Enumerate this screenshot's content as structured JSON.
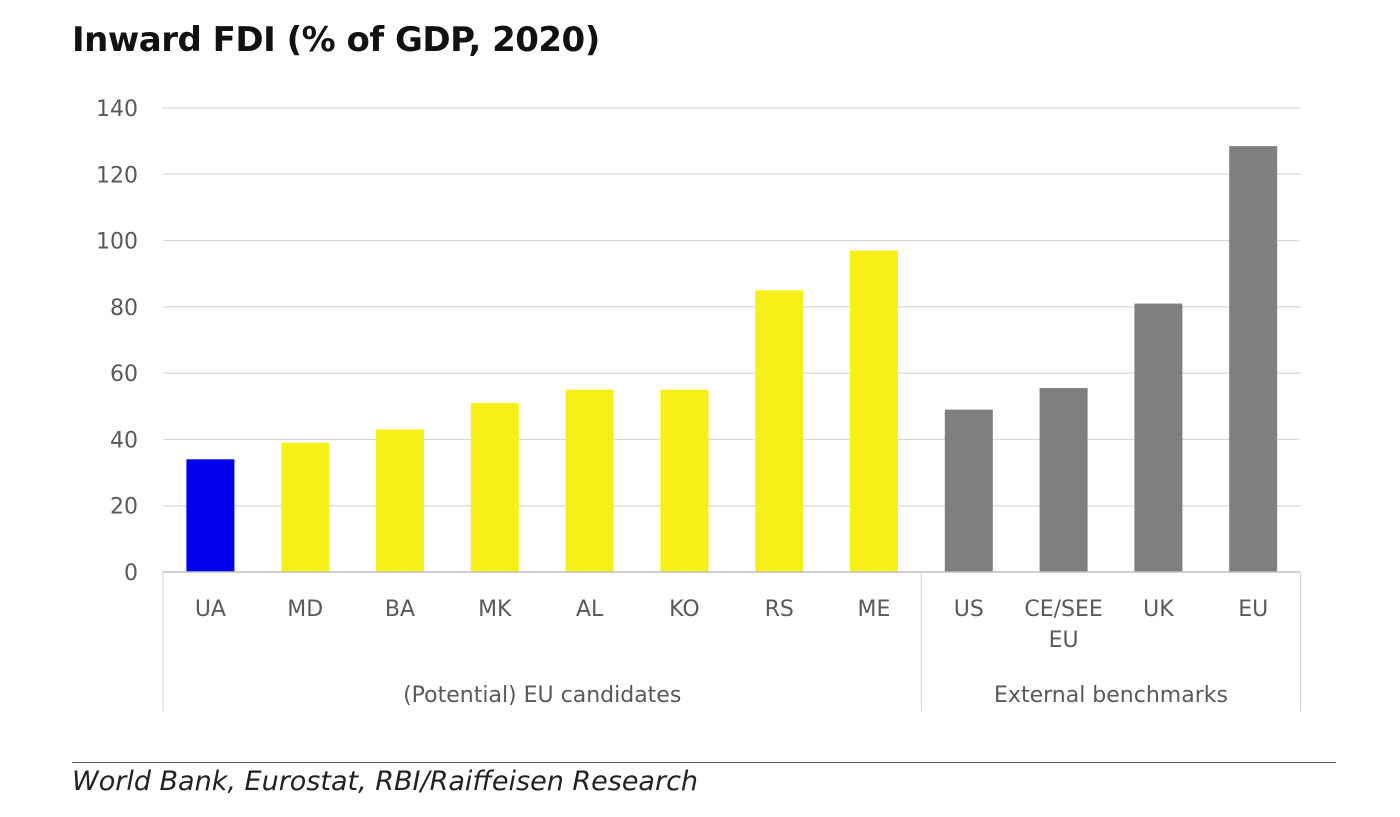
{
  "chart_data": {
    "type": "bar",
    "title": "Inward FDI (% of GDP, 2020)",
    "xlabel": "",
    "ylabel": "",
    "ylim": [
      0,
      140
    ],
    "yticks": [
      0,
      20,
      40,
      60,
      80,
      100,
      120,
      140
    ],
    "grid": true,
    "legend": "none",
    "categories": [
      [
        "UA"
      ],
      [
        "MD"
      ],
      [
        "BA"
      ],
      [
        "MK"
      ],
      [
        "AL"
      ],
      [
        "KO"
      ],
      [
        "RS"
      ],
      [
        "ME"
      ],
      [
        "US"
      ],
      [
        "CE/SEE",
        "EU"
      ],
      [
        "UK"
      ],
      [
        "EU"
      ]
    ],
    "values": [
      34,
      39,
      43,
      51,
      55,
      55,
      85,
      97,
      49,
      55.5,
      81,
      128.5
    ],
    "colors": [
      "#0000ee",
      "#f9ef18",
      "#f9ef18",
      "#f9ef18",
      "#f9ef18",
      "#f9ef18",
      "#f9ef18",
      "#f9ef18",
      "#7f7f7f",
      "#7f7f7f",
      "#7f7f7f",
      "#7f7f7f"
    ],
    "groups": [
      {
        "label": "(Potential) EU candidates",
        "start": 0,
        "end": 7
      },
      {
        "label": "External benchmarks",
        "start": 8,
        "end": 11
      }
    ]
  },
  "source": "World Bank, Eurostat, RBI/Raiffeisen Research"
}
